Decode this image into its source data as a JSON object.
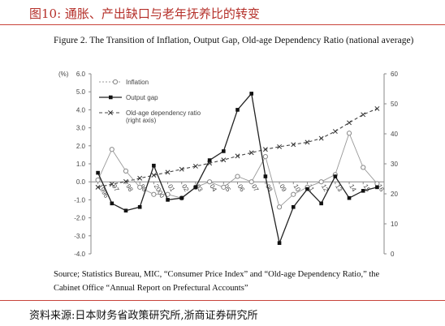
{
  "header": {
    "title": "图10:  通胀、产出缺口与老年抚养比的转变"
  },
  "figure": {
    "title": "Figure 2. The Transition of Inflation, Output Gap, Old-age Dependency Ratio (national average)",
    "source": "Source; Statistics Bureau, MIC, “Consumer Price Index” and “Old-age Dependency Ratio,” the Cabinet Office “Annual Report on Prefectural Accounts”"
  },
  "footer": {
    "source": "资料来源:日本财务省政策研究所,浙商证券研究所"
  },
  "colors": {
    "accent": "#b5302a",
    "series": "#333333",
    "inflation": "#888888"
  },
  "chart_data": {
    "type": "line",
    "y_unit_label": "(%)",
    "x": [
      "1996",
      "97",
      "98",
      "99",
      "2000",
      "01",
      "02",
      "03",
      "04",
      "05",
      "06",
      "07",
      "08",
      "09",
      "10",
      "11",
      "12",
      "13",
      "14",
      "15",
      "16"
    ],
    "x_tick_labels": [
      "1996",
      "97",
      "98",
      "99",
      "2000",
      "01",
      "02",
      "03",
      "04",
      "05",
      "06",
      "07",
      "08",
      "09",
      "10",
      "11",
      "12",
      "13",
      "14",
      "15",
      "16"
    ],
    "ylim": [
      -4.0,
      6.0
    ],
    "yticks": [
      "6.0",
      "5.0",
      "4.0",
      "3.0",
      "2.0",
      "1.0",
      "0.0",
      "-1.0",
      "-2.0",
      "-3.0",
      "-4.0"
    ],
    "y2lim": [
      0,
      60
    ],
    "y2ticks": [
      "60",
      "50",
      "40",
      "30",
      "20",
      "10",
      "0"
    ],
    "legend_position": "top-left",
    "series": [
      {
        "name": "Inflation",
        "axis": "left",
        "marker": "open-circle",
        "style": "solid-thin",
        "values": [
          0.1,
          1.8,
          0.6,
          -0.3,
          -0.7,
          -0.7,
          -0.9,
          -0.3,
          0.0,
          -0.3,
          0.3,
          0.0,
          1.4,
          -1.4,
          -0.7,
          -0.3,
          0.0,
          0.4,
          2.7,
          0.8,
          -0.1
        ]
      },
      {
        "name": "Output gap",
        "axis": "left",
        "marker": "filled-square",
        "style": "solid",
        "values": [
          0.5,
          -1.2,
          -1.6,
          -1.4,
          0.9,
          -1.0,
          -0.9,
          -0.3,
          1.2,
          1.7,
          4.0,
          4.9,
          0.3,
          -3.4,
          -1.4,
          -0.4,
          -1.2,
          0.3,
          -0.9,
          -0.5,
          -0.3
        ]
      },
      {
        "name": "Old-age dependency ratio\n(right axis)",
        "axis": "right",
        "marker": "x",
        "style": "dashed",
        "values": [
          22.2,
          23.2,
          24.1,
          25.2,
          26.2,
          27.2,
          28.2,
          29.2,
          30.2,
          31.3,
          32.6,
          33.7,
          34.8,
          35.7,
          36.4,
          37.2,
          38.5,
          40.8,
          43.7,
          46.4,
          48.4
        ]
      }
    ]
  }
}
